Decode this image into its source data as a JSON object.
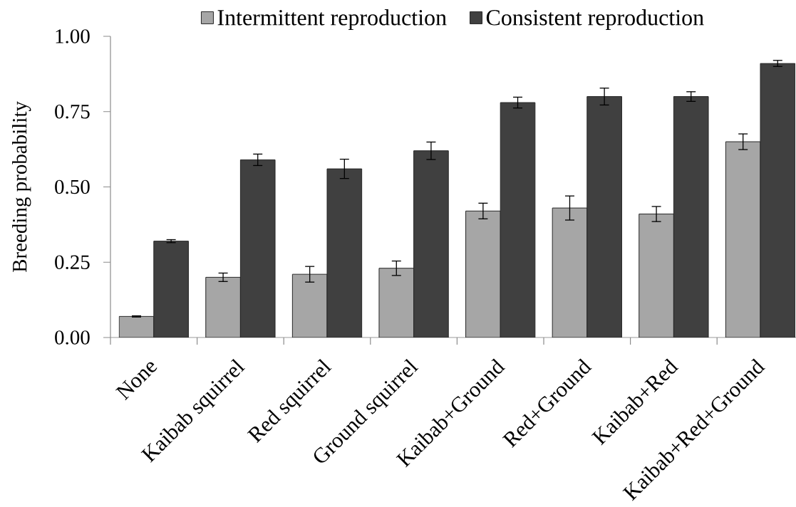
{
  "chart_data": {
    "type": "bar",
    "ylabel": "Breeding probability",
    "categories": [
      "None",
      "Kaibab squirrel",
      "Red squirrel",
      "Ground squirrel",
      "Kaibab+Ground",
      "Red+Ground",
      "Kaibab+Red",
      "Kaibab+Red+Ground"
    ],
    "series": [
      {
        "name": "Intermittent reproduction",
        "color": "#a6a6a6",
        "values": [
          0.07,
          0.2,
          0.21,
          0.23,
          0.42,
          0.43,
          0.41,
          0.65
        ],
        "errors": [
          0.002,
          0.014,
          0.026,
          0.024,
          0.026,
          0.04,
          0.025,
          0.026
        ]
      },
      {
        "name": "Consistent reproduction",
        "color": "#404040",
        "values": [
          0.32,
          0.59,
          0.56,
          0.62,
          0.78,
          0.8,
          0.8,
          0.91
        ],
        "errors": [
          0.005,
          0.019,
          0.032,
          0.029,
          0.018,
          0.028,
          0.016,
          0.01
        ]
      }
    ],
    "ylim": [
      0,
      1
    ],
    "yticks": [
      {
        "value": 0,
        "label": "0.00"
      },
      {
        "value": 0.25,
        "label": "0.25"
      },
      {
        "value": 0.5,
        "label": "0.50"
      },
      {
        "value": 0.75,
        "label": "0.75"
      },
      {
        "value": 1,
        "label": "1.00"
      }
    ],
    "legend": "top",
    "grid": false
  }
}
